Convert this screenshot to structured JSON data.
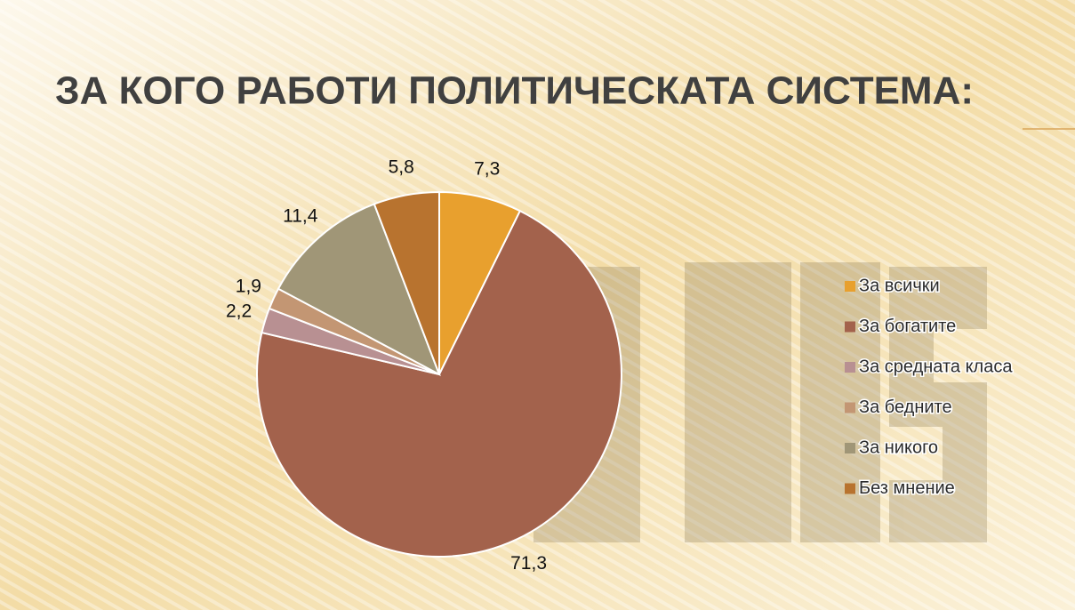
{
  "chart_data": {
    "type": "pie",
    "title": "ЗА КОГО РАБОТИ ПОЛИТИЧЕСКАТА СИСТЕМА:",
    "categories": [
      "За всички",
      "За богатите",
      "За средната класа",
      "За бедните",
      "За никого",
      "Без мнение"
    ],
    "values": [
      7.3,
      71.3,
      2.2,
      1.9,
      11.4,
      5.8
    ],
    "value_labels": [
      "7,3",
      "71,3",
      "2,2",
      "1,9",
      "11,4",
      "5,8"
    ],
    "colors": [
      "#e8a02e",
      "#a3624c",
      "#b89092",
      "#c39673",
      "#a09677",
      "#b8732f"
    ],
    "legend": "right"
  }
}
